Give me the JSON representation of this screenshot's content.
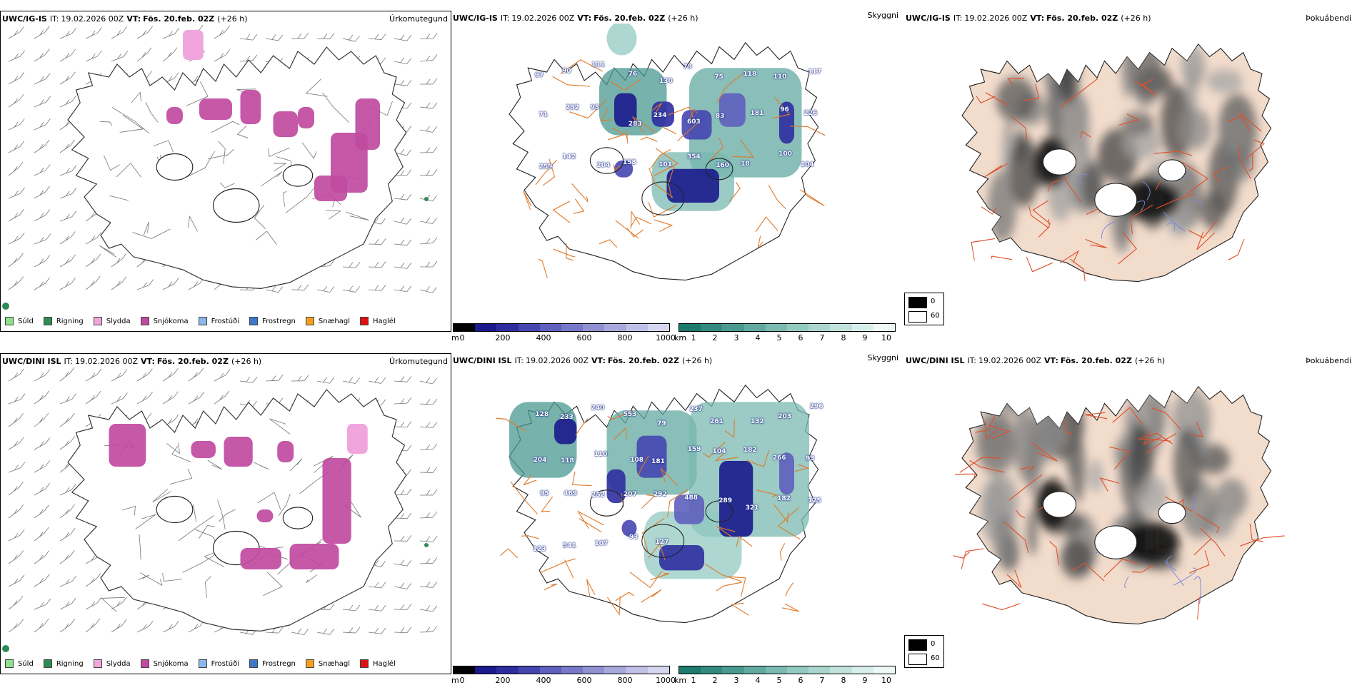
{
  "rows": [
    {
      "model": "UWC/IG-IS",
      "it_label": "IT:",
      "it_value": "19.02.2026 00Z",
      "vt_label": "VT:",
      "vt_value": "Fös. 20.feb. 02Z",
      "lead": "(+26 h)"
    },
    {
      "model": "UWC/DINI ISL",
      "it_label": "IT:",
      "it_value": "19.02.2026 00Z",
      "vt_label": "VT:",
      "vt_value": "Fös. 20.feb. 02Z",
      "lead": "(+26 h)"
    }
  ],
  "panel_titles": {
    "ptype": "Úrkomutegund",
    "cloud": "Skyggni",
    "cover": "Þokuábendi"
  },
  "ptype_legend": [
    {
      "label": "Súld",
      "color": "#8fe08a"
    },
    {
      "label": "Rigning",
      "color": "#2e8b57"
    },
    {
      "label": "Slydda",
      "color": "#f0a6dc"
    },
    {
      "label": "Snjókoma",
      "color": "#c04aa0"
    },
    {
      "label": "Frostúði",
      "color": "#8ab8ea"
    },
    {
      "label": "Frostregn",
      "color": "#3c78c8"
    },
    {
      "label": "Snæhagl",
      "color": "#f0a020"
    },
    {
      "label": "Haglél",
      "color": "#e01010"
    }
  ],
  "height_bar": {
    "unit": "m",
    "ticks": [
      "0",
      "200",
      "400",
      "600",
      "800",
      "1000"
    ],
    "colors": [
      "#000000",
      "#1a1a8c",
      "#2d2da0",
      "#4646b0",
      "#5f5fbe",
      "#7878c8",
      "#9090d2",
      "#a8a8dc",
      "#c0c0e6",
      "#d6d6f0"
    ]
  },
  "vis_bar": {
    "unit": "km",
    "ticks": [
      "1",
      "2",
      "3",
      "4",
      "5",
      "6",
      "7",
      "8",
      "9",
      "10"
    ],
    "colors": [
      "#1f7a6e",
      "#338a80",
      "#4a9a90",
      "#62aaa0",
      "#7abab0",
      "#92cac0",
      "#aad6ce",
      "#c2e2dc",
      "#d8eeea",
      "#eef8f6"
    ]
  },
  "cover_legend": {
    "top": "0",
    "bottom": "60",
    "top_color": "#000000",
    "bottom_color": "#ffffff"
  },
  "cloud_labels_top": [
    "97",
    "90",
    "111",
    "76",
    "130",
    "79",
    "75",
    "118",
    "110",
    "117",
    "71",
    "232",
    "95",
    "283",
    "234",
    "603",
    "83",
    "181",
    "96",
    "226",
    "259",
    "142",
    "204",
    "158",
    "101",
    "354",
    "160",
    "18",
    "100",
    "104"
  ],
  "cloud_labels_bottom": [
    "128",
    "233",
    "240",
    "553",
    "79",
    "237",
    "261",
    "132",
    "203",
    "296",
    "204",
    "118",
    "110",
    "108",
    "181",
    "159",
    "104",
    "182",
    "266",
    "93",
    "95",
    "469",
    "252",
    "207",
    "292",
    "488",
    "289",
    "321",
    "182",
    "125",
    "123",
    "541",
    "107",
    "93",
    "127"
  ]
}
